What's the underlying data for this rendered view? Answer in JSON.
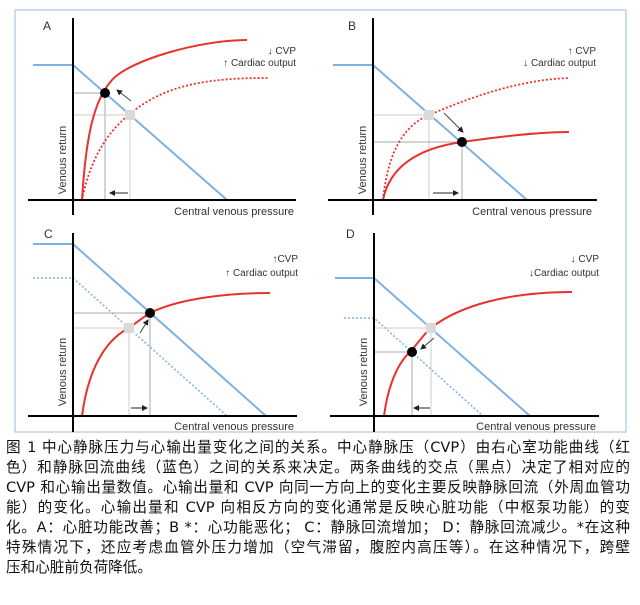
{
  "colors": {
    "cardiac_function_curve": "#e8322b",
    "venous_return_curve": "#7fb1e0",
    "intersection": "#000000",
    "previous_point": "#d9d9d9",
    "frame": "#a9c6ea"
  },
  "panels": [
    {
      "label": "A",
      "change_line1": "↓ CVP",
      "change_line2": "↑ Cardiac output",
      "xlabel": "Central venous pressure",
      "ylabel": "Venous return"
    },
    {
      "label": "B",
      "change_line1": "↑ CVP",
      "change_line2": "↓ Cardiac output",
      "xlabel": "Central venous pressure",
      "ylabel": "Venous return"
    },
    {
      "label": "C",
      "change_line1": "↑CVP",
      "change_line2": "↑ Cardiac output",
      "xlabel": "Central venous pressure",
      "ylabel": "Venous return"
    },
    {
      "label": "D",
      "change_line1": "↓ CVP",
      "change_line2": "↓Cardiac output",
      "xlabel": "Central venous pressure",
      "ylabel": "Venous return"
    }
  ],
  "caption_lines": [
    "图 1  中心静脉压力与心输出量变化之间的关系。中心静脉压（CVP）由右心室功能曲线（红",
    "色）和静脉回流曲线（蓝色）之间的关系来决定。两条曲线的交点（黑点）决定了相对应的",
    "CVP 和心输出量数值。心输出量和 CVP 向同一方向上的变化主要反映静脉回流（外周血管功",
    "能）的变化。心输出量和  CVP  向相反方向的变化通常是反映心脏功能（中枢泵功能）的变",
    "化。A：心脏功能改善；B *：心功能恶化；  C：静脉回流增加；  D：静脉回流减少。*在这种",
    "特殊情况下，还应考虑血管外压力增加（空气滞留，腹腔内高压等）。在这种情况下，跨壁",
    "压和心脏前负荷降低。"
  ]
}
